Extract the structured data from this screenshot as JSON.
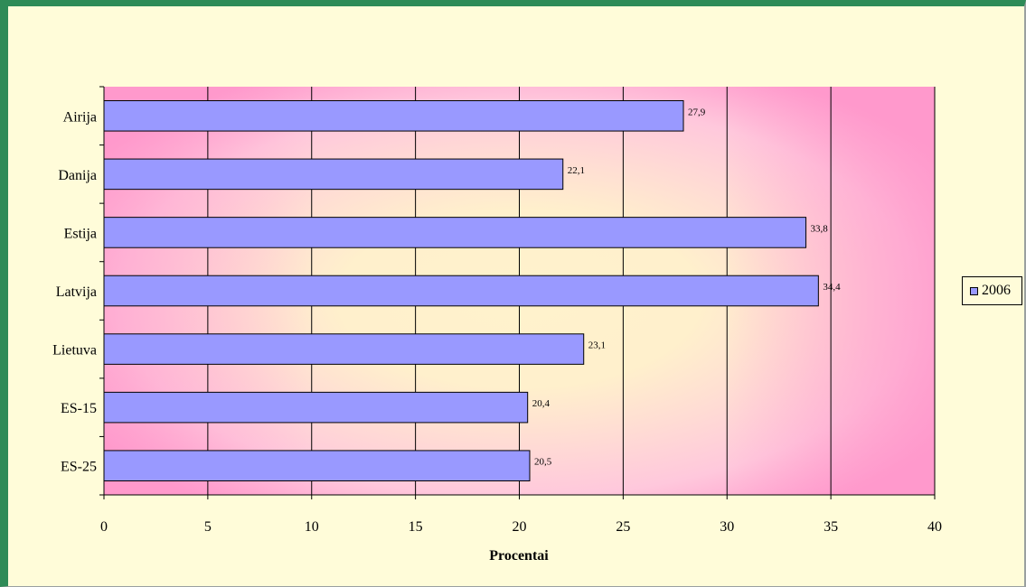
{
  "chart_data": {
    "type": "bar",
    "orientation": "horizontal",
    "categories": [
      "Airija",
      "Danija",
      "Estija",
      "Latvija",
      "Lietuva",
      "ES-15",
      "ES-25"
    ],
    "series": [
      {
        "name": "2006",
        "values": [
          27.9,
          22.1,
          33.8,
          34.4,
          23.1,
          20.4,
          20.5
        ],
        "data_labels": [
          "27,9",
          "22,1",
          "33,8",
          "34,4",
          "23,1",
          "20,4",
          "20,5"
        ],
        "color": "#9999ff"
      }
    ],
    "xlabel": "Procentai",
    "ylabel": "",
    "title": "",
    "xlim": [
      0,
      40
    ],
    "xticks": [
      0,
      5,
      10,
      15,
      20,
      25,
      30,
      35,
      40
    ],
    "grid": "vertical",
    "legend_position": "right"
  },
  "colors": {
    "frame_border": "#2e8b57",
    "outer_background": "#fffcd9",
    "plot_pink": "#ff99cc",
    "plot_cream": "#fff2cc",
    "bar_fill": "#9999ff"
  }
}
